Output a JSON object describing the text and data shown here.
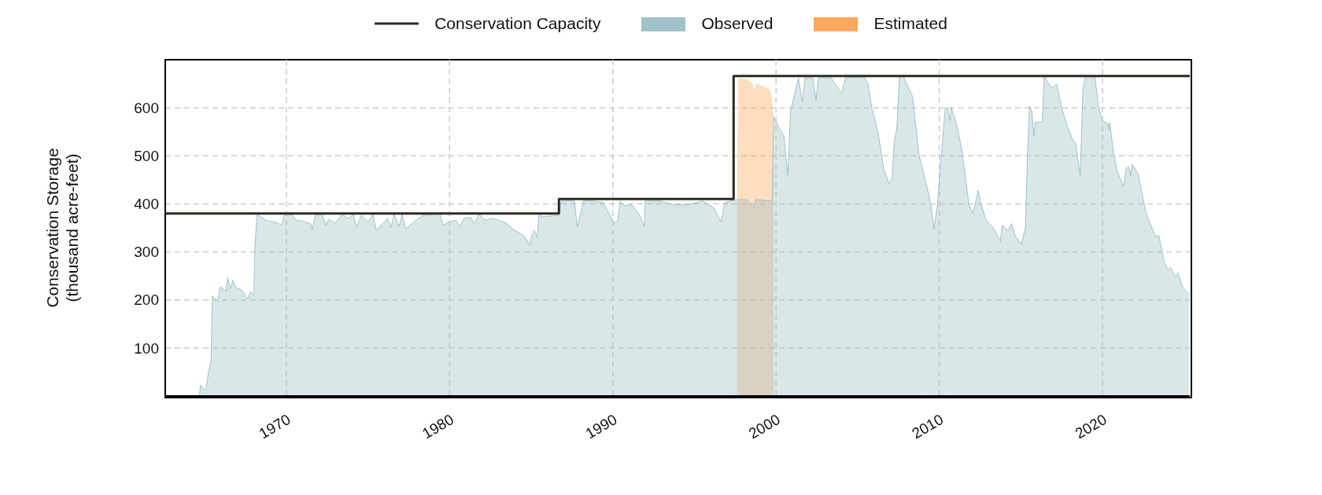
{
  "chart_data": {
    "type": "area",
    "ylabel": "Conservation Storage\n(thousand acre-feet)",
    "xlim": [
      1962.58,
      2025.35
    ],
    "xticks": [
      1970,
      1980,
      1990,
      2000,
      2010,
      2020
    ],
    "ylim": [
      0,
      700
    ],
    "yticks": [
      100,
      200,
      300,
      400,
      500,
      600
    ],
    "grid": true,
    "legend": "top",
    "series": [
      {
        "name": "Conservation Capacity",
        "type": "step",
        "color": "#2d2a22",
        "x": [
          1962.58,
          1986.7,
          1997.4,
          2025.35
        ],
        "values": [
          380,
          410,
          666,
          666
        ]
      },
      {
        "name": "Observed",
        "type": "area",
        "color": "#9fc3c9",
        "x": [
          1962.8,
          1964.67,
          1964.75,
          1964.91,
          1965.07,
          1965.23,
          1965.39,
          1965.47,
          1965.79,
          1965.95,
          1966.31,
          1966.4,
          1966.59,
          1966.72,
          1966.92,
          1967.24,
          1967.64,
          1967.8,
          1968.01,
          1968.07,
          1968.2,
          1968.3,
          1968.8,
          1969.3,
          1969.7,
          1969.9,
          1970.3,
          1970.6,
          1971.0,
          1971.5,
          1971.57,
          1971.8,
          1972.2,
          1972.4,
          1972.6,
          1973.0,
          1973.4,
          1973.8,
          1974.1,
          1974.3,
          1974.6,
          1975.0,
          1975.3,
          1975.5,
          1975.9,
          1976.2,
          1976.4,
          1976.6,
          1976.9,
          1977.1,
          1977.3,
          1977.8,
          1978.1,
          1978.5,
          1979.0,
          1979.4,
          1979.6,
          1980.0,
          1980.4,
          1980.6,
          1980.9,
          1981.3,
          1981.5,
          1981.8,
          1982.2,
          1982.6,
          1983.0,
          1983.46,
          1983.94,
          1984.59,
          1984.91,
          1985.04,
          1985.2,
          1985.36,
          1985.47,
          1985.71,
          1986.67,
          1986.84,
          1987.64,
          1987.83,
          1988.2,
          1988.76,
          1989.41,
          1990.05,
          1990.29,
          1990.45,
          1990.69,
          1991.17,
          1991.65,
          1991.94,
          1991.98,
          1992.94,
          1993.74,
          1994.55,
          1995.51,
          1996.15,
          1996.63,
          1996.88,
          1997.6,
          1998.2,
          1998.64,
          1998.75,
          1999.69,
          1999.77,
          1999.85,
          2000.49,
          2000.73,
          2000.89,
          2001.13,
          2001.37,
          2001.61,
          2001.78,
          2002.26,
          2002.45,
          2002.6,
          2003.38,
          2003.7,
          2004.02,
          2004.26,
          2005.39,
          2005.63,
          2005.87,
          2006.27,
          2006.59,
          2006.92,
          2007.11,
          2007.24,
          2007.4,
          2007.56,
          2007.8,
          2008.36,
          2008.76,
          2009.24,
          2009.49,
          2009.68,
          2009.89,
          2010.13,
          2010.37,
          2010.53,
          2010.66,
          2010.74,
          2011.09,
          2011.41,
          2011.82,
          2012.06,
          2012.27,
          2012.38,
          2012.54,
          2012.86,
          2013.34,
          2013.74,
          2013.86,
          2014.22,
          2014.43,
          2014.66,
          2015.03,
          2015.27,
          2015.4,
          2015.53,
          2015.67,
          2015.8,
          2015.88,
          2016.31,
          2016.43,
          2016.88,
          2017.2,
          2017.52,
          2017.84,
          2018.16,
          2018.35,
          2018.64,
          2018.8,
          2018.96,
          2019.53,
          2019.77,
          2020.01,
          2020.33,
          2020.38,
          2020.44,
          2020.65,
          2020.89,
          2021.29,
          2021.45,
          2021.61,
          2021.73,
          2021.82,
          2022.18,
          2022.66,
          2023.22,
          2023.46,
          2023.78,
          2024.02,
          2024.18,
          2024.5,
          2024.62,
          2024.9,
          2025.31
        ],
        "values": [
          0,
          0,
          23,
          14,
          14,
          49,
          74,
          208,
          197,
          227,
          218,
          246,
          224,
          241,
          225,
          221,
          202,
          218,
          208,
          311,
          376,
          376,
          365,
          362,
          356,
          378,
          378,
          366,
          364,
          359,
          346,
          378,
          378,
          355,
          368,
          360,
          377,
          370,
          378,
          352,
          376,
          362,
          378,
          346,
          358,
          370,
          350,
          378,
          353,
          378,
          348,
          362,
          370,
          378,
          378,
          380,
          356,
          362,
          366,
          352,
          370,
          372,
          358,
          378,
          366,
          370,
          366,
          360,
          346,
          333,
          314,
          336,
          344,
          330,
          376,
          373,
          376,
          406,
          406,
          352,
          406,
          406,
          403,
          361,
          363,
          406,
          396,
          398,
          376,
          352,
          406,
          406,
          398,
          398,
          406,
          393,
          363,
          403,
          409,
          409,
          392,
          409,
          406,
          406,
          580,
          540,
          458,
          594,
          627,
          662,
          611,
          662,
          662,
          616,
          662,
          662,
          646,
          630,
          662,
          665,
          651,
          600,
          545,
          474,
          442,
          453,
          529,
          556,
          665,
          665,
          624,
          502,
          436,
          398,
          347,
          398,
          502,
          599,
          599,
          573,
          600,
          562,
          507,
          398,
          379,
          409,
          428,
          403,
          366,
          349,
          322,
          355,
          344,
          359,
          333,
          316,
          349,
          496,
          604,
          594,
          540,
          570,
          570,
          665,
          641,
          649,
          597,
          562,
          534,
          526,
          458,
          638,
          665,
          665,
          600,
          573,
          567,
          554,
          570,
          513,
          469,
          436,
          474,
          477,
          458,
          482,
          463,
          382,
          333,
          333,
          279,
          262,
          267,
          246,
          257,
          227,
          210
        ]
      },
      {
        "name": "Estimated",
        "type": "area",
        "color": "#ffa95f",
        "x": [
          1997.6,
          1997.68,
          1998.24,
          1998.56,
          1998.64,
          1998.8,
          1999.53,
          1999.69,
          1999.85
        ],
        "values": [
          409,
          662,
          659,
          651,
          635,
          651,
          640,
          632,
          583
        ]
      }
    ]
  }
}
